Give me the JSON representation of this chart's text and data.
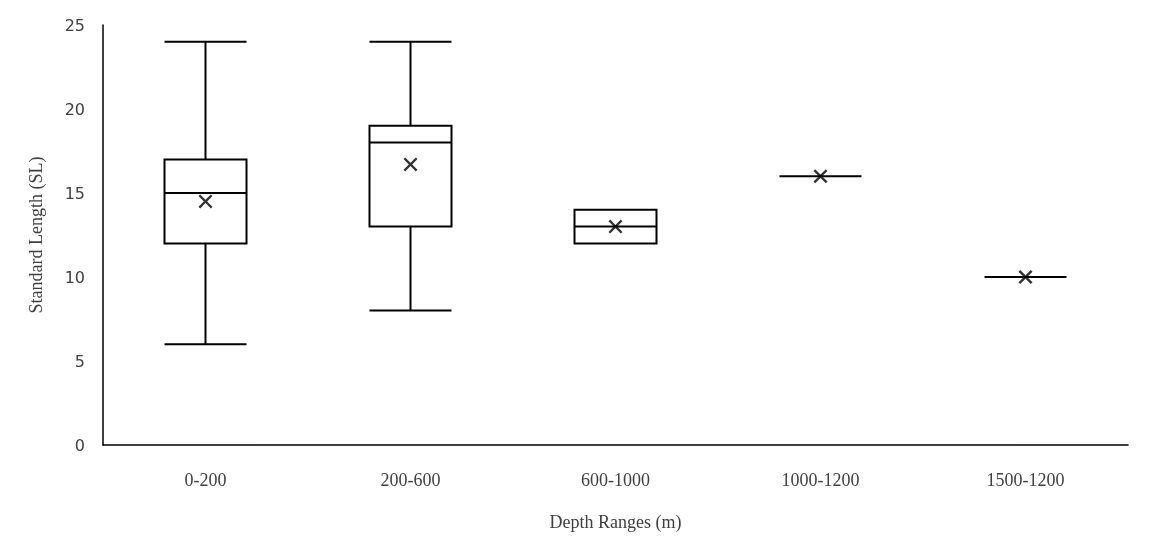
{
  "chart_data": {
    "type": "box",
    "xlabel": "Depth Ranges (m)",
    "ylabel": "Standard Length (SL)",
    "categories": [
      "0-200",
      "200-600",
      "600-1000",
      "1000-1200",
      "1500-1200"
    ],
    "boxes": [
      {
        "low": 6,
        "q1": 12,
        "median": 15,
        "q3": 17,
        "high": 24,
        "mean": 14.5
      },
      {
        "low": 8,
        "q1": 13,
        "median": 18,
        "q3": 19,
        "high": 24,
        "mean": 16.7
      },
      {
        "low": 12,
        "q1": 12,
        "median": 13,
        "q3": 14,
        "high": 14,
        "mean": 13
      },
      {
        "low": 16,
        "q1": 16,
        "median": 16,
        "q3": 16,
        "high": 16,
        "mean": 16
      },
      {
        "low": 10,
        "q1": 10,
        "median": 10,
        "q3": 10,
        "high": 10,
        "mean": 10
      }
    ],
    "color": "#000000",
    "marker": "cross",
    "ylim": [
      0,
      25
    ],
    "yticks": [
      0,
      5,
      10,
      15,
      20,
      25
    ],
    "grid": false
  }
}
